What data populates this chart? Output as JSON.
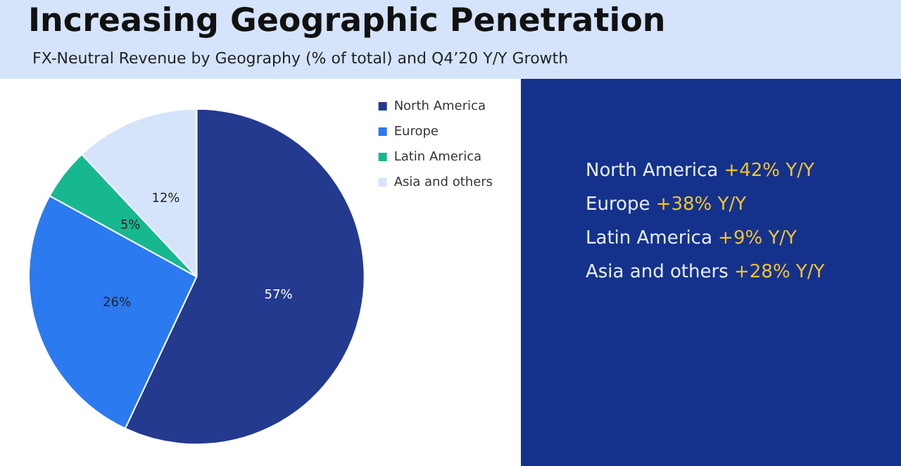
{
  "chart_data": {
    "type": "pie",
    "title": "Increasing Geographic Penetration",
    "subtitle": "FX-Neutral Revenue by Geography (% of total) and Q4’20 Y/Y Growth",
    "categories": [
      "North America",
      "Europe",
      "Latin America",
      "Asia and others"
    ],
    "values": [
      57,
      26,
      5,
      12
    ],
    "colors": [
      "#233a8f",
      "#2b7af0",
      "#17b890",
      "#d6e4fb"
    ],
    "value_labels": [
      "57%",
      "26%",
      "5%",
      "12%"
    ],
    "legend": "right",
    "annotations": [
      "North America +42% Y/Y",
      "Europe +38% Y/Y",
      "Latin America +9% Y/Y",
      "Asia and others +28% Y/Y"
    ]
  }
}
